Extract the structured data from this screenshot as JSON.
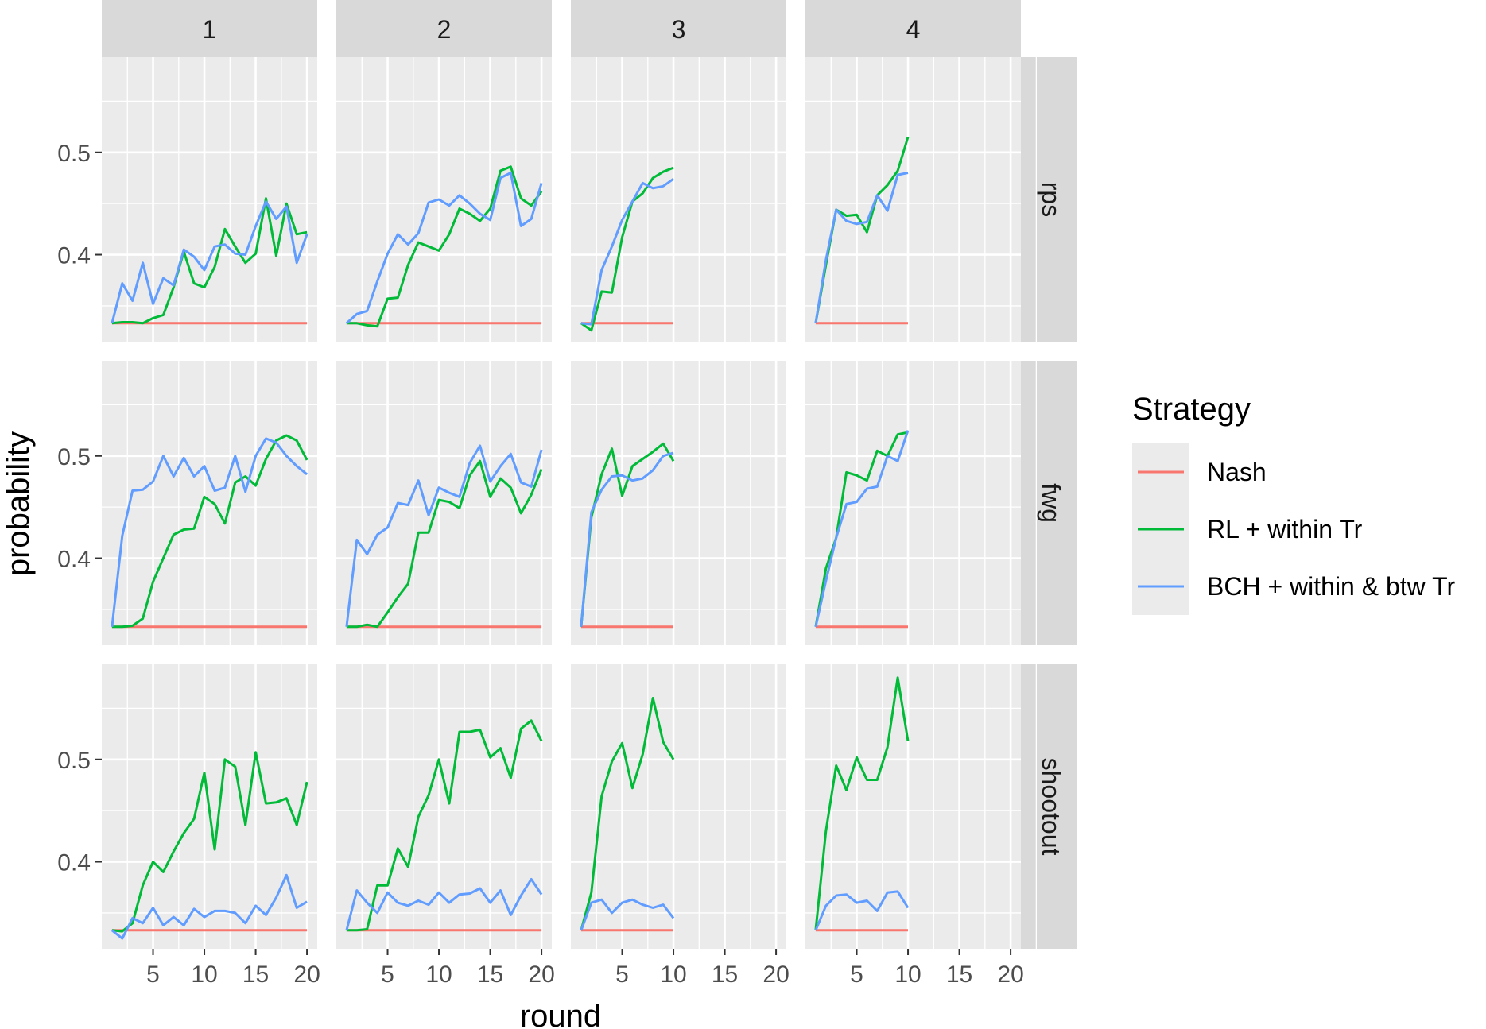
{
  "chart_data": {
    "type": "line",
    "facet_columns": [
      "1",
      "2",
      "3",
      "4"
    ],
    "facet_rows": [
      "rps",
      "fwg",
      "shootout"
    ],
    "xlabel": "round",
    "ylabel": "probability",
    "x_ticks": [
      5,
      10,
      15,
      20
    ],
    "y_ticks": [
      0.4,
      0.5
    ],
    "xlim": [
      0,
      21
    ],
    "ylim": [
      0.315,
      0.593
    ],
    "grid": true,
    "legend": {
      "title": "Strategy",
      "position": "right",
      "entries": [
        "Nash",
        "RL + within Tr",
        "BCH + within & btw Tr"
      ]
    },
    "colors": {
      "Nash": "#F8766D",
      "RL + within Tr": "#00BA38",
      "BCH + within & btw Tr": "#619CFF"
    },
    "panels": [
      {
        "row": "rps",
        "col": "1",
        "x": [
          1,
          2,
          3,
          4,
          5,
          6,
          7,
          8,
          9,
          10,
          11,
          12,
          13,
          14,
          15,
          16,
          17,
          18,
          19,
          20
        ],
        "series": [
          {
            "name": "Nash",
            "values": [
              0.333,
              0.333,
              0.333,
              0.333,
              0.333,
              0.333,
              0.333,
              0.333,
              0.333,
              0.333,
              0.333,
              0.333,
              0.333,
              0.333,
              0.333,
              0.333,
              0.333,
              0.333,
              0.333,
              0.333
            ]
          },
          {
            "name": "RL + within Tr",
            "values": [
              0.333,
              0.334,
              0.334,
              0.333,
              0.338,
              0.341,
              0.368,
              0.403,
              0.372,
              0.368,
              0.388,
              0.425,
              0.408,
              0.392,
              0.401,
              0.455,
              0.399,
              0.45,
              0.42,
              0.422
            ]
          },
          {
            "name": "BCH + within & btw Tr",
            "values": [
              0.333,
              0.372,
              0.355,
              0.392,
              0.352,
              0.377,
              0.37,
              0.405,
              0.398,
              0.385,
              0.408,
              0.41,
              0.401,
              0.4,
              0.428,
              0.452,
              0.435,
              0.447,
              0.392,
              0.42
            ]
          }
        ]
      },
      {
        "row": "rps",
        "col": "2",
        "x": [
          1,
          2,
          3,
          4,
          5,
          6,
          7,
          8,
          9,
          10,
          11,
          12,
          13,
          14,
          15,
          16,
          17,
          18,
          19,
          20
        ],
        "series": [
          {
            "name": "Nash",
            "values": [
              0.333,
              0.333,
              0.333,
              0.333,
              0.333,
              0.333,
              0.333,
              0.333,
              0.333,
              0.333,
              0.333,
              0.333,
              0.333,
              0.333,
              0.333,
              0.333,
              0.333,
              0.333,
              0.333,
              0.333
            ]
          },
          {
            "name": "RL + within Tr",
            "values": [
              0.333,
              0.333,
              0.331,
              0.33,
              0.357,
              0.358,
              0.39,
              0.412,
              0.408,
              0.404,
              0.42,
              0.445,
              0.44,
              0.433,
              0.445,
              0.482,
              0.486,
              0.455,
              0.448,
              0.462
            ]
          },
          {
            "name": "BCH + within & btw Tr",
            "values": [
              0.333,
              0.342,
              0.345,
              0.374,
              0.401,
              0.42,
              0.41,
              0.421,
              0.451,
              0.454,
              0.448,
              0.458,
              0.45,
              0.44,
              0.434,
              0.475,
              0.48,
              0.428,
              0.435,
              0.47
            ]
          }
        ]
      },
      {
        "row": "rps",
        "col": "3",
        "x": [
          1,
          2,
          3,
          4,
          5,
          6,
          7,
          8,
          9,
          10
        ],
        "series": [
          {
            "name": "Nash",
            "values": [
              0.333,
              0.333,
              0.333,
              0.333,
              0.333,
              0.333,
              0.333,
              0.333,
              0.333,
              0.333
            ]
          },
          {
            "name": "RL + within Tr",
            "values": [
              0.333,
              0.326,
              0.364,
              0.363,
              0.417,
              0.452,
              0.46,
              0.475,
              0.481,
              0.485
            ]
          },
          {
            "name": "BCH + within & btw Tr",
            "values": [
              0.333,
              0.332,
              0.385,
              0.408,
              0.434,
              0.452,
              0.47,
              0.465,
              0.467,
              0.474
            ]
          }
        ]
      },
      {
        "row": "rps",
        "col": "4",
        "x": [
          1,
          2,
          3,
          4,
          5,
          6,
          7,
          8,
          9,
          10
        ],
        "series": [
          {
            "name": "Nash",
            "values": [
              0.333,
              0.333,
              0.333,
              0.333,
              0.333,
              0.333,
              0.333,
              0.333,
              0.333,
              0.333
            ]
          },
          {
            "name": "RL + within Tr",
            "values": [
              0.333,
              0.39,
              0.444,
              0.438,
              0.439,
              0.422,
              0.458,
              0.468,
              0.482,
              0.515
            ]
          },
          {
            "name": "BCH + within & btw Tr",
            "values": [
              0.333,
              0.395,
              0.444,
              0.433,
              0.43,
              0.432,
              0.458,
              0.443,
              0.478,
              0.48
            ]
          }
        ]
      },
      {
        "row": "fwg",
        "col": "1",
        "x": [
          1,
          2,
          3,
          4,
          5,
          6,
          7,
          8,
          9,
          10,
          11,
          12,
          13,
          14,
          15,
          16,
          17,
          18,
          19,
          20
        ],
        "series": [
          {
            "name": "Nash",
            "values": [
              0.333,
              0.333,
              0.333,
              0.333,
              0.333,
              0.333,
              0.333,
              0.333,
              0.333,
              0.333,
              0.333,
              0.333,
              0.333,
              0.333,
              0.333,
              0.333,
              0.333,
              0.333,
              0.333,
              0.333
            ]
          },
          {
            "name": "RL + within Tr",
            "values": [
              0.333,
              0.333,
              0.334,
              0.341,
              0.377,
              0.4,
              0.423,
              0.428,
              0.429,
              0.46,
              0.453,
              0.434,
              0.474,
              0.48,
              0.471,
              0.497,
              0.515,
              0.52,
              0.515,
              0.496
            ]
          },
          {
            "name": "BCH + within & btw Tr",
            "values": [
              0.333,
              0.422,
              0.466,
              0.467,
              0.475,
              0.5,
              0.48,
              0.498,
              0.48,
              0.49,
              0.466,
              0.469,
              0.5,
              0.465,
              0.5,
              0.517,
              0.513,
              0.5,
              0.49,
              0.482
            ]
          }
        ]
      },
      {
        "row": "fwg",
        "col": "2",
        "x": [
          1,
          2,
          3,
          4,
          5,
          6,
          7,
          8,
          9,
          10,
          11,
          12,
          13,
          14,
          15,
          16,
          17,
          18,
          19,
          20
        ],
        "series": [
          {
            "name": "Nash",
            "values": [
              0.333,
              0.333,
              0.333,
              0.333,
              0.333,
              0.333,
              0.333,
              0.333,
              0.333,
              0.333,
              0.333,
              0.333,
              0.333,
              0.333,
              0.333,
              0.333,
              0.333,
              0.333,
              0.333,
              0.333
            ]
          },
          {
            "name": "RL + within Tr",
            "values": [
              0.333,
              0.333,
              0.335,
              0.333,
              0.347,
              0.362,
              0.375,
              0.425,
              0.425,
              0.457,
              0.455,
              0.449,
              0.481,
              0.495,
              0.46,
              0.478,
              0.469,
              0.444,
              0.462,
              0.487
            ]
          },
          {
            "name": "BCH + within & btw Tr",
            "values": [
              0.333,
              0.418,
              0.404,
              0.423,
              0.43,
              0.454,
              0.452,
              0.476,
              0.442,
              0.469,
              0.464,
              0.46,
              0.493,
              0.51,
              0.475,
              0.49,
              0.502,
              0.474,
              0.47,
              0.506
            ]
          }
        ]
      },
      {
        "row": "fwg",
        "col": "3",
        "x": [
          1,
          2,
          3,
          4,
          5,
          6,
          7,
          8,
          9,
          10
        ],
        "series": [
          {
            "name": "Nash",
            "values": [
              0.333,
              0.333,
              0.333,
              0.333,
              0.333,
              0.333,
              0.333,
              0.333,
              0.333,
              0.333
            ]
          },
          {
            "name": "RL + within Tr",
            "values": [
              0.333,
              0.44,
              0.482,
              0.507,
              0.461,
              0.49,
              0.497,
              0.504,
              0.512,
              0.495
            ]
          },
          {
            "name": "BCH + within & btw Tr",
            "values": [
              0.333,
              0.445,
              0.467,
              0.48,
              0.481,
              0.476,
              0.478,
              0.486,
              0.5,
              0.503
            ]
          }
        ]
      },
      {
        "row": "fwg",
        "col": "4",
        "x": [
          1,
          2,
          3,
          4,
          5,
          6,
          7,
          8,
          9,
          10
        ],
        "series": [
          {
            "name": "Nash",
            "values": [
              0.333,
              0.333,
              0.333,
              0.333,
              0.333,
              0.333,
              0.333,
              0.333,
              0.333,
              0.333
            ]
          },
          {
            "name": "RL + within Tr",
            "values": [
              0.333,
              0.39,
              0.42,
              0.484,
              0.481,
              0.476,
              0.505,
              0.5,
              0.521,
              0.523
            ]
          },
          {
            "name": "BCH + within & btw Tr",
            "values": [
              0.333,
              0.378,
              0.42,
              0.453,
              0.455,
              0.468,
              0.47,
              0.5,
              0.495,
              0.525
            ]
          }
        ]
      },
      {
        "row": "shootout",
        "col": "1",
        "x": [
          1,
          2,
          3,
          4,
          5,
          6,
          7,
          8,
          9,
          10,
          11,
          12,
          13,
          14,
          15,
          16,
          17,
          18,
          19,
          20
        ],
        "series": [
          {
            "name": "Nash",
            "values": [
              0.333,
              0.333,
              0.333,
              0.333,
              0.333,
              0.333,
              0.333,
              0.333,
              0.333,
              0.333,
              0.333,
              0.333,
              0.333,
              0.333,
              0.333,
              0.333,
              0.333,
              0.333,
              0.333,
              0.333
            ]
          },
          {
            "name": "RL + within Tr",
            "values": [
              0.333,
              0.332,
              0.34,
              0.377,
              0.4,
              0.39,
              0.41,
              0.428,
              0.442,
              0.487,
              0.412,
              0.5,
              0.493,
              0.436,
              0.507,
              0.457,
              0.458,
              0.462,
              0.436,
              0.478
            ]
          },
          {
            "name": "BCH + within & btw Tr",
            "values": [
              0.333,
              0.325,
              0.345,
              0.34,
              0.355,
              0.338,
              0.346,
              0.338,
              0.354,
              0.346,
              0.352,
              0.352,
              0.35,
              0.34,
              0.357,
              0.348,
              0.365,
              0.387,
              0.355,
              0.361
            ]
          }
        ]
      },
      {
        "row": "shootout",
        "col": "2",
        "x": [
          1,
          2,
          3,
          4,
          5,
          6,
          7,
          8,
          9,
          10,
          11,
          12,
          13,
          14,
          15,
          16,
          17,
          18,
          19,
          20
        ],
        "series": [
          {
            "name": "Nash",
            "values": [
              0.333,
              0.333,
              0.333,
              0.333,
              0.333,
              0.333,
              0.333,
              0.333,
              0.333,
              0.333,
              0.333,
              0.333,
              0.333,
              0.333,
              0.333,
              0.333,
              0.333,
              0.333,
              0.333,
              0.333
            ]
          },
          {
            "name": "RL + within Tr",
            "values": [
              0.333,
              0.333,
              0.334,
              0.377,
              0.377,
              0.413,
              0.395,
              0.444,
              0.465,
              0.5,
              0.457,
              0.527,
              0.527,
              0.529,
              0.502,
              0.511,
              0.482,
              0.53,
              0.538,
              0.518
            ]
          },
          {
            "name": "BCH + within & btw Tr",
            "values": [
              0.333,
              0.372,
              0.36,
              0.35,
              0.37,
              0.36,
              0.357,
              0.362,
              0.358,
              0.37,
              0.36,
              0.368,
              0.369,
              0.374,
              0.36,
              0.372,
              0.348,
              0.367,
              0.383,
              0.368
            ]
          }
        ]
      },
      {
        "row": "shootout",
        "col": "3",
        "x": [
          1,
          2,
          3,
          4,
          5,
          6,
          7,
          8,
          9,
          10
        ],
        "series": [
          {
            "name": "Nash",
            "values": [
              0.333,
              0.333,
              0.333,
              0.333,
              0.333,
              0.333,
              0.333,
              0.333,
              0.333,
              0.333
            ]
          },
          {
            "name": "RL + within Tr",
            "values": [
              0.333,
              0.37,
              0.464,
              0.498,
              0.516,
              0.472,
              0.505,
              0.56,
              0.517,
              0.5
            ]
          },
          {
            "name": "BCH + within & btw Tr",
            "values": [
              0.333,
              0.36,
              0.363,
              0.35,
              0.36,
              0.363,
              0.358,
              0.355,
              0.358,
              0.345
            ]
          }
        ]
      },
      {
        "row": "shootout",
        "col": "4",
        "x": [
          1,
          2,
          3,
          4,
          5,
          6,
          7,
          8,
          9,
          10
        ],
        "series": [
          {
            "name": "Nash",
            "values": [
              0.333,
              0.333,
              0.333,
              0.333,
              0.333,
              0.333,
              0.333,
              0.333,
              0.333,
              0.333
            ]
          },
          {
            "name": "RL + within Tr",
            "values": [
              0.333,
              0.43,
              0.494,
              0.47,
              0.502,
              0.48,
              0.48,
              0.512,
              0.58,
              0.518
            ]
          },
          {
            "name": "BCH + within & btw Tr",
            "values": [
              0.333,
              0.357,
              0.367,
              0.368,
              0.36,
              0.362,
              0.352,
              0.37,
              0.371,
              0.355
            ]
          }
        ]
      }
    ]
  }
}
